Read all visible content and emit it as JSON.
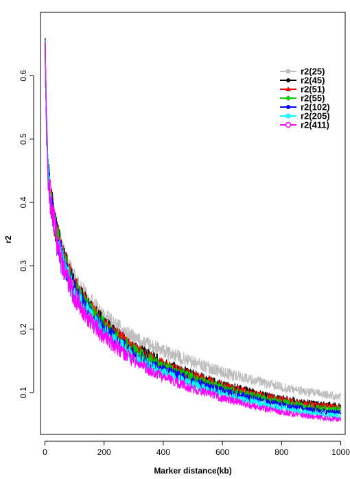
{
  "chart_data": {
    "type": "line",
    "xlabel": "Marker distance(kb)",
    "ylabel": "r2",
    "xlim": [
      -15,
      1015
    ],
    "ylim": [
      0.034,
      0.7
    ],
    "x_ticks": [
      0,
      200,
      400,
      600,
      800,
      1000
    ],
    "y_ticks": [
      0.1,
      0.2,
      0.3,
      0.4,
      0.5,
      0.6
    ],
    "grid": false,
    "legend_position": "top-right",
    "x_knots": [
      0,
      5,
      10,
      20,
      40,
      60,
      100,
      150,
      200,
      300,
      400,
      500,
      600,
      700,
      800,
      900,
      1000
    ],
    "series": [
      {
        "name": "r2(25)",
        "color": "#bebebe",
        "marker": "square",
        "values": [
          0.67,
          0.55,
          0.46,
          0.41,
          0.355,
          0.32,
          0.275,
          0.243,
          0.218,
          0.185,
          0.165,
          0.148,
          0.132,
          0.12,
          0.108,
          0.1,
          0.093
        ]
      },
      {
        "name": "r2(45)",
        "color": "#000000",
        "marker": "circle-filled",
        "values": [
          0.66,
          0.54,
          0.455,
          0.405,
          0.35,
          0.315,
          0.268,
          0.235,
          0.208,
          0.17,
          0.145,
          0.128,
          0.112,
          0.1,
          0.09,
          0.082,
          0.078
        ]
      },
      {
        "name": "r2(51)",
        "color": "#ff0000",
        "marker": "triangle",
        "values": [
          0.66,
          0.54,
          0.455,
          0.405,
          0.35,
          0.313,
          0.266,
          0.233,
          0.206,
          0.168,
          0.143,
          0.126,
          0.11,
          0.098,
          0.088,
          0.08,
          0.076
        ]
      },
      {
        "name": "r2(55)",
        "color": "#00cd00",
        "marker": "diamond",
        "values": [
          0.66,
          0.54,
          0.455,
          0.405,
          0.35,
          0.312,
          0.264,
          0.231,
          0.204,
          0.166,
          0.14,
          0.123,
          0.107,
          0.095,
          0.085,
          0.077,
          0.073
        ]
      },
      {
        "name": "r2(102)",
        "color": "#0000ff",
        "marker": "circle-filled",
        "values": [
          0.655,
          0.53,
          0.45,
          0.4,
          0.345,
          0.308,
          0.26,
          0.226,
          0.199,
          0.16,
          0.135,
          0.117,
          0.102,
          0.09,
          0.08,
          0.072,
          0.067
        ]
      },
      {
        "name": "r2(205)",
        "color": "#00ffff",
        "marker": "star",
        "values": [
          0.655,
          0.53,
          0.45,
          0.4,
          0.343,
          0.305,
          0.257,
          0.222,
          0.195,
          0.156,
          0.13,
          0.112,
          0.097,
          0.085,
          0.075,
          0.067,
          0.062
        ]
      },
      {
        "name": "r2(411)",
        "color": "#ff00ff",
        "marker": "circle-open",
        "values": [
          0.65,
          0.525,
          0.445,
          0.395,
          0.34,
          0.3,
          0.252,
          0.215,
          0.188,
          0.15,
          0.124,
          0.106,
          0.091,
          0.079,
          0.069,
          0.062,
          0.057
        ]
      }
    ]
  }
}
